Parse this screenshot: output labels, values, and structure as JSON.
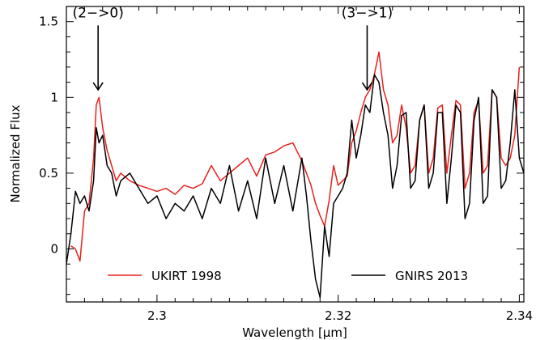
{
  "chart_data": {
    "type": "line",
    "title": "",
    "xlabel": "Wavelength [μm]",
    "ylabel": "Normalized Flux",
    "xlim": [
      2.29,
      2.3405
    ],
    "ylim": [
      -0.35,
      1.6
    ],
    "xticks": [
      2.3,
      2.32,
      2.34
    ],
    "xtick_labels": [
      "2.3",
      "2.32",
      "2.34"
    ],
    "yticks": [
      0,
      0.5,
      1,
      1.5
    ],
    "ytick_labels": [
      "0",
      "0.5",
      "1",
      "1.5"
    ],
    "grid": false,
    "legend": "bottom",
    "annotations": [
      {
        "text": "(2−>0)",
        "x": 2.2935,
        "y": 1.55,
        "arrow_to": 1.05
      },
      {
        "text": "(3−>1)",
        "x": 2.3232,
        "y": 1.55,
        "arrow_to": 1.05
      }
    ],
    "series": [
      {
        "name": "UKIRT 1998",
        "color": "#e8211e",
        "x": [
          2.2905,
          2.291,
          2.2915,
          2.292,
          2.2925,
          2.293,
          2.2933,
          2.2936,
          2.294,
          2.2945,
          2.295,
          2.2955,
          2.296,
          2.297,
          2.298,
          2.299,
          2.3,
          2.301,
          2.302,
          2.303,
          2.304,
          2.305,
          2.306,
          2.307,
          2.308,
          2.309,
          2.31,
          2.311,
          2.312,
          2.313,
          2.314,
          2.315,
          2.316,
          2.317,
          2.3175,
          2.318,
          2.3185,
          2.319,
          2.3195,
          2.32,
          2.3205,
          2.321,
          2.3215,
          2.322,
          2.3225,
          2.323,
          2.3235,
          2.324,
          2.3245,
          2.325,
          2.3255,
          2.326,
          2.3265,
          2.327,
          2.3275,
          2.328,
          2.3285,
          2.329,
          2.3295,
          2.33,
          2.3305,
          2.331,
          2.3315,
          2.332,
          2.3325,
          2.333,
          2.3335,
          2.334,
          2.3345,
          2.335,
          2.3355,
          2.336,
          2.3365,
          2.337,
          2.3375,
          2.338,
          2.3385,
          2.339,
          2.3395,
          2.34
        ],
        "y": [
          0.02,
          0.0,
          -0.08,
          0.25,
          0.3,
          0.6,
          0.95,
          1.0,
          0.8,
          0.65,
          0.55,
          0.45,
          0.5,
          0.45,
          0.42,
          0.4,
          0.38,
          0.4,
          0.36,
          0.42,
          0.4,
          0.43,
          0.55,
          0.45,
          0.5,
          0.55,
          0.6,
          0.48,
          0.62,
          0.64,
          0.68,
          0.7,
          0.58,
          0.42,
          0.3,
          0.22,
          0.15,
          0.32,
          0.55,
          0.42,
          0.45,
          0.48,
          0.7,
          0.78,
          0.9,
          1.0,
          1.05,
          1.15,
          1.3,
          1.05,
          0.95,
          0.7,
          0.75,
          0.95,
          0.8,
          0.5,
          0.55,
          0.85,
          0.95,
          0.5,
          0.6,
          0.93,
          0.95,
          0.5,
          0.75,
          0.98,
          0.95,
          0.4,
          0.5,
          0.9,
          0.98,
          0.5,
          0.55,
          1.05,
          1.0,
          0.6,
          0.55,
          0.6,
          0.75,
          1.2
        ]
      },
      {
        "name": "GNIRS 2013",
        "color": "#000000",
        "x": [
          2.29,
          2.2905,
          2.291,
          2.2915,
          2.292,
          2.2925,
          2.293,
          2.2933,
          2.2936,
          2.294,
          2.2945,
          2.295,
          2.2955,
          2.296,
          2.297,
          2.298,
          2.299,
          2.3,
          2.301,
          2.302,
          2.303,
          2.304,
          2.305,
          2.306,
          2.307,
          2.308,
          2.309,
          2.31,
          2.311,
          2.312,
          2.313,
          2.314,
          2.315,
          2.316,
          2.3165,
          2.317,
          2.3175,
          2.318,
          2.3185,
          2.319,
          2.3195,
          2.32,
          2.3205,
          2.321,
          2.3215,
          2.322,
          2.3225,
          2.323,
          2.3235,
          2.324,
          2.3245,
          2.325,
          2.3255,
          2.326,
          2.3265,
          2.327,
          2.3275,
          2.328,
          2.3285,
          2.329,
          2.3295,
          2.33,
          2.3305,
          2.331,
          2.3315,
          2.332,
          2.3325,
          2.333,
          2.3335,
          2.334,
          2.3345,
          2.335,
          2.3355,
          2.336,
          2.3365,
          2.337,
          2.3375,
          2.338,
          2.3385,
          2.339,
          2.3395,
          2.34,
          2.3405
        ],
        "y": [
          -0.1,
          0.1,
          0.38,
          0.3,
          0.35,
          0.25,
          0.45,
          0.8,
          0.7,
          0.75,
          0.55,
          0.5,
          0.35,
          0.45,
          0.5,
          0.4,
          0.3,
          0.35,
          0.2,
          0.3,
          0.25,
          0.35,
          0.2,
          0.4,
          0.3,
          0.55,
          0.25,
          0.45,
          0.2,
          0.6,
          0.3,
          0.55,
          0.25,
          0.6,
          0.35,
          0.05,
          -0.2,
          -0.32,
          0.15,
          -0.05,
          0.3,
          0.35,
          0.4,
          0.5,
          0.85,
          0.6,
          0.75,
          0.95,
          0.9,
          1.15,
          1.1,
          0.9,
          0.75,
          0.4,
          0.55,
          0.88,
          0.9,
          0.4,
          0.45,
          0.85,
          0.95,
          0.4,
          0.5,
          0.9,
          0.9,
          0.3,
          0.6,
          0.95,
          0.9,
          0.2,
          0.3,
          0.85,
          1.0,
          0.3,
          0.35,
          1.05,
          1.0,
          0.4,
          0.45,
          0.7,
          1.05,
          0.6,
          0.5
        ]
      }
    ]
  }
}
